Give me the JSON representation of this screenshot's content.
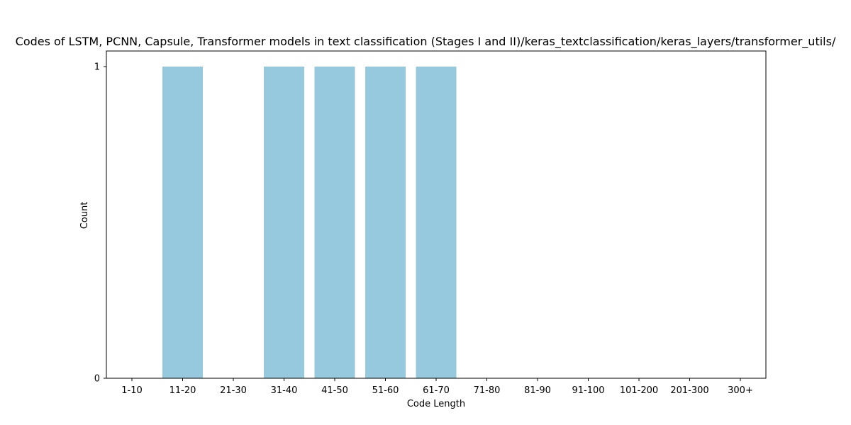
{
  "chart_data": {
    "type": "bar",
    "title": "Codes of LSTM, PCNN, Capsule, Transformer models in text classification (Stages I and II)/keras_textclassification/keras_layers/transformer_utils/",
    "xlabel": "Code Length",
    "ylabel": "Count",
    "categories": [
      "1-10",
      "11-20",
      "21-30",
      "31-40",
      "41-50",
      "51-60",
      "61-70",
      "71-80",
      "81-90",
      "91-100",
      "101-200",
      "201-300",
      "300+"
    ],
    "values": [
      0,
      1,
      0,
      1,
      1,
      1,
      1,
      0,
      0,
      0,
      0,
      0,
      0
    ],
    "ylim": [
      0,
      1
    ],
    "yticks": [
      "0",
      "1"
    ],
    "bar_color": "#96c9dd",
    "grid": false,
    "legend": "none"
  }
}
